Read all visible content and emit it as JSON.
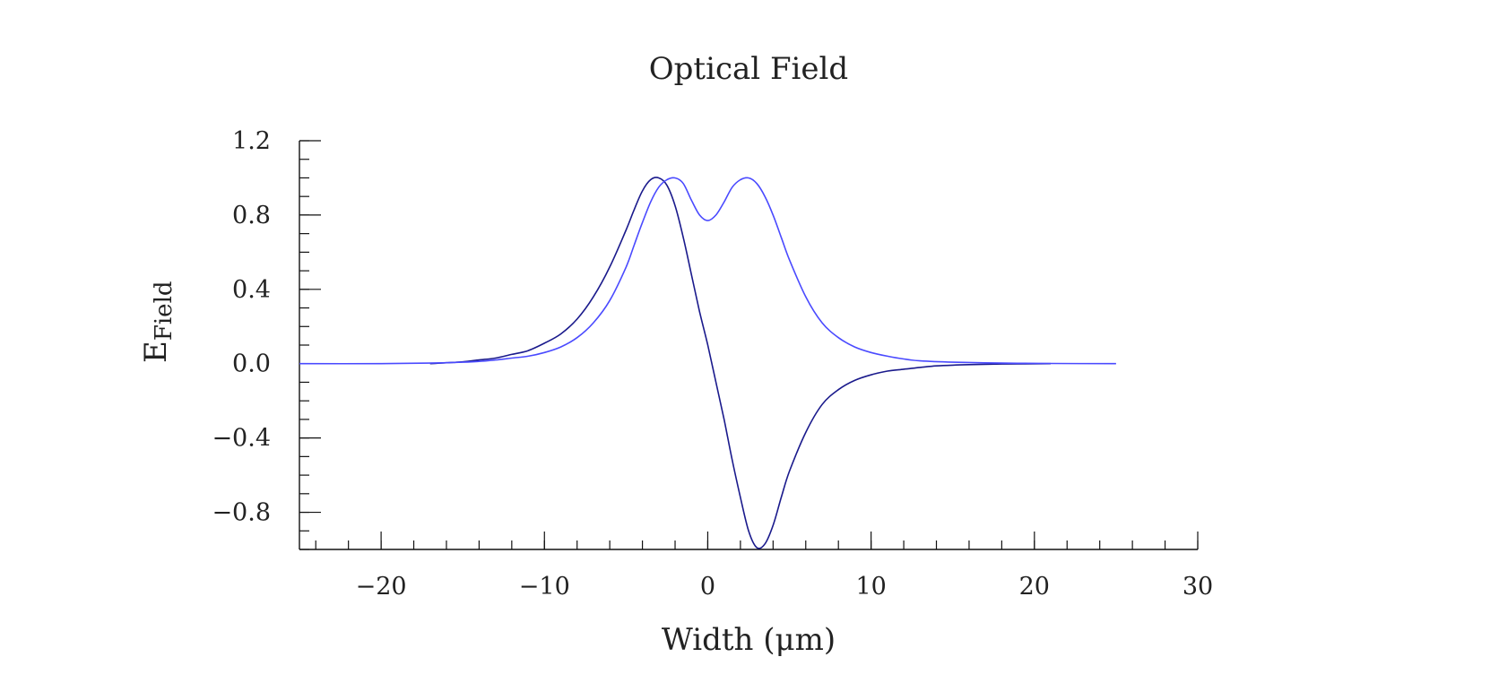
{
  "chart_data": {
    "type": "line",
    "title": "Optical Field",
    "xlabel": "Width (μm)",
    "ylabel_main": "E",
    "ylabel_sub": "Field",
    "xlim": [
      -25,
      30
    ],
    "ylim": [
      -1.0,
      1.2
    ],
    "x_ticks": [
      -20,
      -10,
      0,
      10,
      20,
      30
    ],
    "x_tick_labels": [
      "−20",
      "−10",
      "0",
      "10",
      "20",
      "30"
    ],
    "x_minor_step": 2,
    "y_ticks": [
      -0.8,
      -0.4,
      0.0,
      0.4,
      0.8,
      1.2
    ],
    "y_tick_labels": [
      "−0.8",
      "−0.4",
      "0.0",
      "0.4",
      "0.8",
      "1.2"
    ],
    "y_minor_step": 0.1,
    "grid": false,
    "legend": "none",
    "series": [
      {
        "color": "#1a1a8c",
        "x": [
          -17,
          -16,
          -15,
          -14,
          -13,
          -12,
          -11,
          -10,
          -9,
          -8,
          -7,
          -6,
          -5,
          -4.5,
          -4,
          -3.5,
          -3,
          -2.5,
          -2,
          -1.5,
          -1,
          -0.5,
          0,
          0.5,
          1,
          1.5,
          2,
          2.5,
          3,
          3.5,
          4,
          4.5,
          5,
          6,
          7,
          8,
          9,
          10,
          11,
          12,
          13,
          14,
          15,
          16,
          18,
          21
        ],
        "y": [
          0.0,
          0.005,
          0.01,
          0.02,
          0.03,
          0.05,
          0.07,
          0.11,
          0.16,
          0.24,
          0.36,
          0.52,
          0.72,
          0.83,
          0.93,
          0.99,
          1.0,
          0.96,
          0.85,
          0.68,
          0.48,
          0.28,
          0.1,
          -0.1,
          -0.3,
          -0.52,
          -0.72,
          -0.9,
          -0.99,
          -0.97,
          -0.87,
          -0.72,
          -0.58,
          -0.37,
          -0.22,
          -0.14,
          -0.09,
          -0.06,
          -0.04,
          -0.03,
          -0.02,
          -0.012,
          -0.008,
          -0.005,
          -0.002,
          0.0
        ]
      },
      {
        "color": "#4a4aff",
        "x": [
          -25,
          -20,
          -17,
          -15,
          -14,
          -13,
          -12,
          -11,
          -10,
          -9,
          -8,
          -7,
          -6,
          -5,
          -4.5,
          -4,
          -3.5,
          -3,
          -2.5,
          -2,
          -1.5,
          -1,
          -0.5,
          0,
          0.5,
          1,
          1.5,
          2,
          2.5,
          3,
          3.5,
          4,
          4.5,
          5,
          6,
          7,
          8,
          9,
          10,
          11,
          12,
          13,
          15,
          18,
          21,
          25
        ],
        "y": [
          0.0,
          0.0,
          0.003,
          0.008,
          0.012,
          0.02,
          0.03,
          0.04,
          0.06,
          0.09,
          0.14,
          0.22,
          0.34,
          0.52,
          0.64,
          0.76,
          0.87,
          0.95,
          0.99,
          1.0,
          0.97,
          0.88,
          0.8,
          0.77,
          0.8,
          0.87,
          0.95,
          0.99,
          1.0,
          0.97,
          0.9,
          0.8,
          0.68,
          0.56,
          0.36,
          0.22,
          0.14,
          0.09,
          0.06,
          0.04,
          0.025,
          0.015,
          0.008,
          0.003,
          0.001,
          0.0
        ]
      }
    ]
  }
}
